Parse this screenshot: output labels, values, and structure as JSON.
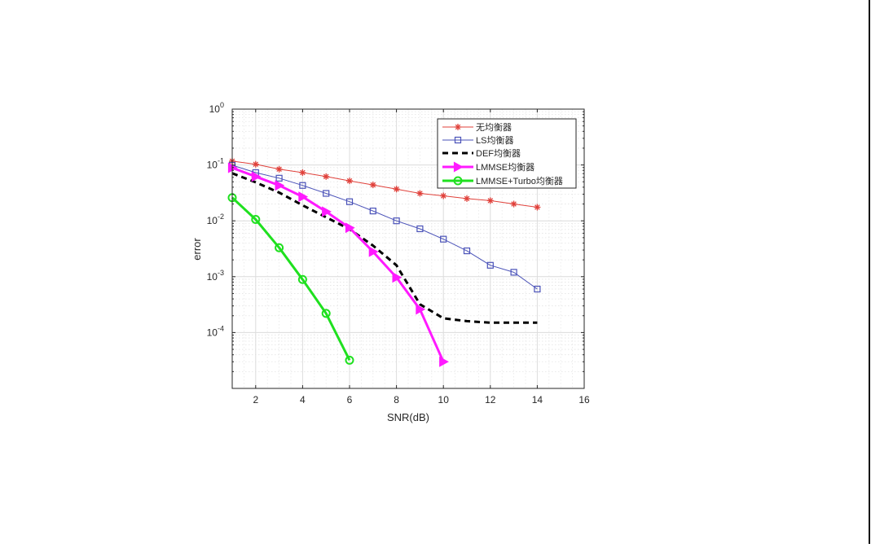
{
  "chart_data": {
    "type": "line",
    "title": "",
    "xlabel": "SNR(dB)",
    "ylabel": "error",
    "xlim": [
      1,
      16
    ],
    "ylim": [
      1e-05,
      1
    ],
    "yscale": "log",
    "grid": true,
    "minor_grid": true,
    "legend_position": "upper right",
    "xticks": [
      2,
      4,
      6,
      8,
      10,
      12,
      14,
      16
    ],
    "yticks": [
      {
        "value": 1,
        "base": "10",
        "exp": "0"
      },
      {
        "value": 0.1,
        "base": "10",
        "exp": "-1"
      },
      {
        "value": 0.01,
        "base": "10",
        "exp": "-2"
      },
      {
        "value": 0.001,
        "base": "10",
        "exp": "-3"
      },
      {
        "value": 0.0001,
        "base": "10",
        "exp": "-4"
      }
    ],
    "series": [
      {
        "name": "无均衡器",
        "color": "#e0403a",
        "marker": "asterisk",
        "line_style": "solid",
        "line_width": 1,
        "x": [
          1,
          2,
          3,
          4,
          5,
          6,
          7,
          8,
          9,
          10,
          11,
          12,
          13,
          14
        ],
        "values": [
          0.117,
          0.103,
          0.084,
          0.073,
          0.062,
          0.052,
          0.044,
          0.037,
          0.031,
          0.028,
          0.025,
          0.023,
          0.02,
          0.0175
        ]
      },
      {
        "name": "LS均衡器",
        "color": "#4a52b8",
        "marker": "square",
        "line_style": "solid",
        "line_width": 1,
        "x": [
          1,
          2,
          3,
          4,
          5,
          6,
          7,
          8,
          9,
          10,
          11,
          12,
          13,
          14
        ],
        "values": [
          0.099,
          0.073,
          0.058,
          0.043,
          0.031,
          0.022,
          0.015,
          0.01,
          0.0072,
          0.0047,
          0.0029,
          0.0016,
          0.0012,
          0.0006
        ]
      },
      {
        "name": "DEF均衡器",
        "color": "#000000",
        "marker": "none",
        "line_style": "dashed",
        "line_width": 3,
        "x": [
          1,
          2,
          3,
          4,
          5,
          6,
          7,
          8,
          9,
          10,
          11,
          12,
          13,
          14
        ],
        "values": [
          0.071,
          0.049,
          0.032,
          0.019,
          0.0116,
          0.0071,
          0.0036,
          0.0016,
          0.00032,
          0.00018,
          0.00016,
          0.00015,
          0.00015,
          0.00015
        ]
      },
      {
        "name": "LMMSE均衡器",
        "color": "#ff1aff",
        "marker": "triangle-right",
        "line_style": "solid",
        "line_width": 3,
        "x": [
          1,
          2,
          3,
          4,
          5,
          6,
          7,
          8,
          9,
          10
        ],
        "values": [
          0.089,
          0.062,
          0.043,
          0.027,
          0.0146,
          0.0075,
          0.0028,
          0.00097,
          0.00026,
          3e-05
        ]
      },
      {
        "name": "LMMSE+Turbo均衡器",
        "color": "#1fe01f",
        "marker": "circle",
        "line_style": "solid",
        "line_width": 3,
        "x": [
          1,
          2,
          3,
          4,
          5,
          6
        ],
        "values": [
          0.026,
          0.0106,
          0.0033,
          0.00089,
          0.00022,
          3.2e-05
        ]
      }
    ]
  }
}
